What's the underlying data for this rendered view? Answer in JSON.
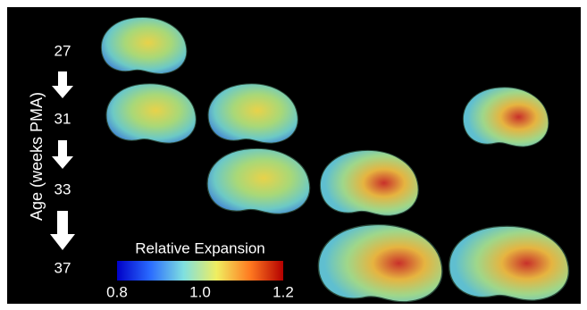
{
  "axis_label": "Age  (weeks PMA)",
  "ages": [
    "27",
    "31",
    "33",
    "37"
  ],
  "colorbar": {
    "title": "Relative Expansion",
    "range": [
      0.8,
      1.2
    ],
    "ticks": [
      0.8,
      {
        "value": 1.0,
        "label": "1.0"
      },
      1.2
    ]
  }
}
